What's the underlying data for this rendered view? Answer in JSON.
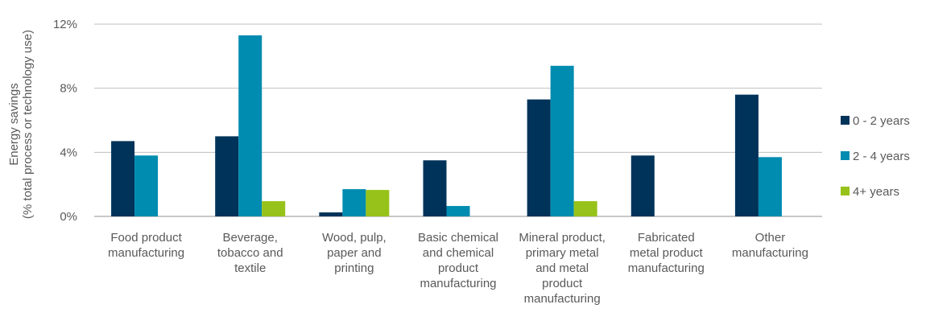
{
  "chart_data": {
    "type": "bar",
    "ylabel_lines": [
      "Energy savings",
      "(% total process or technology use)"
    ],
    "ylim": [
      0,
      12
    ],
    "yticks": [
      0,
      4,
      8,
      12
    ],
    "ytick_labels": [
      "0%",
      "4%",
      "8%",
      "12%"
    ],
    "grid": true,
    "legend_position": "right",
    "categories": [
      [
        "Food product",
        "manufacturing"
      ],
      [
        "Beverage,",
        "tobacco and",
        "textile"
      ],
      [
        "Wood, pulp,",
        "paper and",
        "printing"
      ],
      [
        "Basic chemical",
        "and chemical",
        "product",
        "manufacturing"
      ],
      [
        "Mineral product,",
        "primary metal",
        "and metal",
        "product",
        "manufacturing"
      ],
      [
        "Fabricated",
        "metal product",
        "manufacturing"
      ],
      [
        "Other",
        "manufacturing"
      ]
    ],
    "series": [
      {
        "name": "0 - 2 years",
        "color": "#003359",
        "values": [
          4.7,
          5.0,
          0.25,
          3.5,
          7.3,
          3.8,
          7.6
        ]
      },
      {
        "name": "2 - 4 years",
        "color": "#008bb0",
        "values": [
          3.8,
          11.3,
          1.7,
          0.65,
          9.4,
          0,
          3.7
        ]
      },
      {
        "name": "4+ years",
        "color": "#97c21a",
        "values": [
          0,
          0.95,
          1.65,
          0,
          0.95,
          0,
          0
        ]
      }
    ]
  }
}
